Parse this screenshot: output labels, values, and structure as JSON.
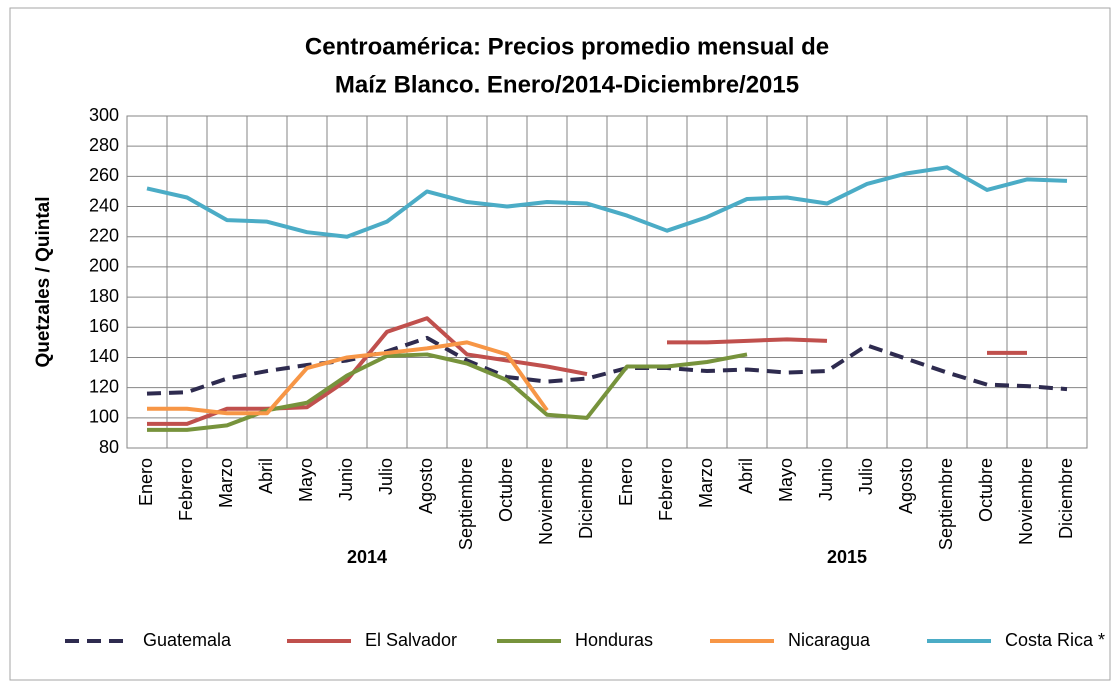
{
  "chart_data": {
    "type": "line",
    "title": "Centroamérica: Precios promedio mensual de",
    "subtitle": "Maíz Blanco. Enero/2014-Diciembre/2015",
    "y_label": "Quetzales / Quintal",
    "categories": [
      "Enero",
      "Febrero",
      "Marzo",
      "Abril",
      "Mayo",
      "Junio",
      "Julio",
      "Agosto",
      "Septiembre",
      "Octubre",
      "Noviembre",
      "Diciembre",
      "Enero",
      "Febrero",
      "Marzo",
      "Abril",
      "Mayo",
      "Junio",
      "Julio",
      "Agosto",
      "Septiembre",
      "Octubre",
      "Noviembre",
      "Diciembre"
    ],
    "category_groups": [
      "2014",
      "2015"
    ],
    "series": [
      {
        "name": "Guatemala",
        "color": "#2e2b4f",
        "line_style": "dashed",
        "values": [
          116,
          117,
          126,
          131,
          135,
          138,
          144,
          153,
          138,
          127,
          124,
          126,
          133,
          133,
          131,
          132,
          130,
          131,
          148,
          139,
          130,
          122,
          121,
          119
        ]
      },
      {
        "name": "El Salvador",
        "color": "#c0504d",
        "line_style": "solid",
        "values": [
          96,
          96,
          106,
          106,
          107,
          125,
          157,
          166,
          142,
          138,
          134,
          129,
          null,
          150,
          150,
          151,
          152,
          151,
          null,
          null,
          null,
          143,
          143,
          null
        ]
      },
      {
        "name": "Honduras",
        "color": "#77933c",
        "line_style": "solid",
        "values": [
          92,
          92,
          95,
          105,
          110,
          128,
          141,
          142,
          136,
          125,
          102,
          100,
          134,
          134,
          137,
          142,
          null,
          null,
          null,
          null,
          null,
          null,
          null,
          null
        ]
      },
      {
        "name": "Nicaragua",
        "color": "#f79646",
        "line_style": "solid",
        "values": [
          106,
          106,
          103,
          103,
          133,
          140,
          143,
          146,
          150,
          142,
          105,
          null,
          null,
          null,
          null,
          null,
          null,
          null,
          null,
          null,
          null,
          null,
          null,
          null
        ]
      },
      {
        "name": "Costa Rica *",
        "color": "#4bacc6",
        "line_style": "solid",
        "values": [
          252,
          246,
          231,
          230,
          223,
          220,
          230,
          250,
          243,
          240,
          243,
          242,
          234,
          224,
          233,
          245,
          246,
          242,
          255,
          262,
          266,
          251,
          258,
          257
        ]
      }
    ],
    "ylim": [
      80,
      300
    ],
    "yticks": [
      80,
      100,
      120,
      140,
      160,
      180,
      200,
      220,
      240,
      260,
      280,
      300
    ],
    "grid": true,
    "legend_position": "bottom"
  }
}
